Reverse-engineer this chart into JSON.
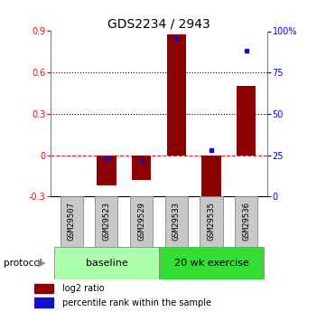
{
  "title": "GDS2234 / 2943",
  "samples": [
    "GSM29507",
    "GSM29523",
    "GSM29529",
    "GSM29533",
    "GSM29535",
    "GSM29536"
  ],
  "log2_ratio": [
    0.0,
    -0.22,
    -0.18,
    0.88,
    -0.33,
    0.5
  ],
  "percentile_rank": [
    null,
    23,
    22,
    96,
    28,
    88
  ],
  "bar_color": "#8B0000",
  "dot_color": "#1111CC",
  "ylim_left": [
    -0.3,
    0.9
  ],
  "ylim_right": [
    0,
    100
  ],
  "yticks_left": [
    -0.3,
    0.0,
    0.3,
    0.6,
    0.9
  ],
  "ytick_labels_left": [
    "-0.3",
    "0",
    "0.3",
    "0.6",
    "0.9"
  ],
  "yticks_right": [
    0,
    25,
    50,
    75,
    100
  ],
  "ytick_labels_right": [
    "0",
    "25",
    "50",
    "75",
    "100%"
  ],
  "hlines_dotted": [
    0.3,
    0.6
  ],
  "hline_dashed_val": 0.0,
  "groups": [
    {
      "label": "baseline",
      "start": 0,
      "end": 3,
      "color": "#AAFFAA"
    },
    {
      "label": "20 wk exercise",
      "start": 3,
      "end": 6,
      "color": "#33DD33"
    }
  ],
  "protocol_label": "protocol",
  "legend_items": [
    {
      "color": "#8B0000",
      "label": "log2 ratio"
    },
    {
      "color": "#1111CC",
      "label": "percentile rank within the sample"
    }
  ],
  "bar_width": 0.55,
  "bg_color": "#FFFFFF",
  "label_box_color": "#C8C8C8"
}
